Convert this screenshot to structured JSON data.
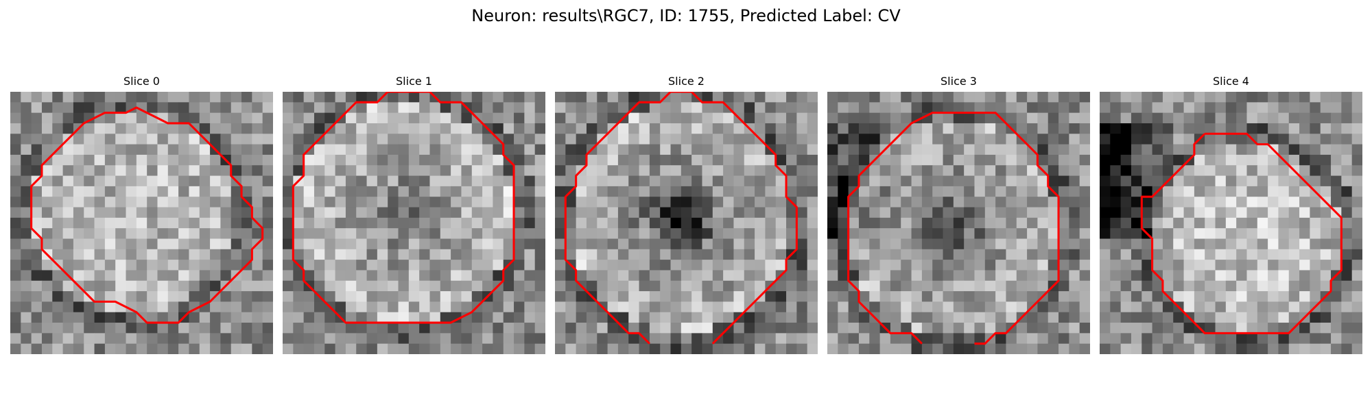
{
  "figure": {
    "title": "Neuron: results\\RGC7, ID: 1755, Predicted Label: CV"
  },
  "panels": [
    {
      "title": "Slice 0",
      "image": "grayscale-microscopy-slice",
      "contour": [
        [
          13,
          2
        ],
        [
          14,
          2.5
        ],
        [
          15,
          3
        ],
        [
          17,
          3
        ],
        [
          18,
          4
        ],
        [
          19,
          5
        ],
        [
          20,
          6
        ],
        [
          21,
          7
        ],
        [
          21,
          8
        ],
        [
          22,
          9
        ],
        [
          22,
          10
        ],
        [
          23,
          11
        ],
        [
          23,
          12
        ],
        [
          24,
          13
        ],
        [
          24,
          14
        ],
        [
          23,
          15
        ],
        [
          23,
          16
        ],
        [
          22,
          17
        ],
        [
          21,
          18
        ],
        [
          20,
          19
        ],
        [
          19,
          20
        ],
        [
          17,
          21
        ],
        [
          16,
          22
        ],
        [
          15,
          22
        ],
        [
          13,
          22
        ],
        [
          12,
          21
        ],
        [
          10,
          20
        ],
        [
          8,
          20
        ],
        [
          7,
          19
        ],
        [
          6,
          18
        ],
        [
          5,
          17
        ],
        [
          4,
          16
        ],
        [
          3,
          15
        ],
        [
          3,
          14
        ],
        [
          2,
          13
        ],
        [
          2,
          12
        ],
        [
          2,
          11
        ],
        [
          2,
          10
        ],
        [
          2,
          9
        ],
        [
          3,
          8
        ],
        [
          3,
          7
        ],
        [
          4,
          6
        ],
        [
          5,
          5
        ],
        [
          6,
          4
        ],
        [
          7,
          3
        ],
        [
          9,
          2
        ],
        [
          11,
          2
        ],
        [
          12,
          1.5
        ]
      ]
    },
    {
      "title": "Slice 1",
      "image": "grayscale-microscopy-slice",
      "contour": [
        [
          12,
          0
        ],
        [
          14,
          0
        ],
        [
          15,
          1
        ],
        [
          17,
          1
        ],
        [
          18,
          2
        ],
        [
          19,
          3
        ],
        [
          20,
          4
        ],
        [
          21,
          5
        ],
        [
          21,
          6
        ],
        [
          22,
          7
        ],
        [
          22,
          8
        ],
        [
          22,
          9
        ],
        [
          22,
          10
        ],
        [
          22,
          11
        ],
        [
          22,
          12
        ],
        [
          22,
          13
        ],
        [
          22,
          14
        ],
        [
          22,
          15
        ],
        [
          22,
          16
        ],
        [
          21,
          17
        ],
        [
          21,
          18
        ],
        [
          20,
          19
        ],
        [
          19,
          20
        ],
        [
          18,
          21
        ],
        [
          16,
          22
        ],
        [
          14,
          22
        ],
        [
          12,
          22
        ],
        [
          10,
          22
        ],
        [
          8,
          22
        ],
        [
          6,
          22
        ],
        [
          5,
          21
        ],
        [
          4,
          20
        ],
        [
          3,
          19
        ],
        [
          2,
          18
        ],
        [
          2,
          17
        ],
        [
          1,
          16
        ],
        [
          1,
          15
        ],
        [
          1,
          14
        ],
        [
          1,
          13
        ],
        [
          1,
          12
        ],
        [
          1,
          11
        ],
        [
          1,
          10
        ],
        [
          1,
          9
        ],
        [
          2,
          8
        ],
        [
          2,
          7
        ],
        [
          2,
          6
        ],
        [
          3,
          5
        ],
        [
          4,
          4
        ],
        [
          5,
          3
        ],
        [
          6,
          2
        ],
        [
          7,
          1
        ],
        [
          9,
          1
        ],
        [
          10,
          0
        ]
      ]
    },
    {
      "title": "Slice 2",
      "image": "grayscale-microscopy-slice",
      "contour": [
        [
          15,
          24
        ],
        [
          16,
          23
        ],
        [
          17,
          22
        ],
        [
          18,
          21
        ],
        [
          19,
          20
        ],
        [
          20,
          19
        ],
        [
          21,
          18
        ],
        [
          22,
          17
        ],
        [
          22,
          16
        ],
        [
          23,
          15
        ],
        [
          23,
          14
        ],
        [
          23,
          13
        ],
        [
          23,
          12
        ],
        [
          23,
          11
        ],
        [
          22,
          10
        ],
        [
          22,
          9
        ],
        [
          22,
          8
        ],
        [
          21,
          7
        ],
        [
          21,
          6
        ],
        [
          20,
          5
        ],
        [
          19,
          4
        ],
        [
          18,
          3
        ],
        [
          17,
          2
        ],
        [
          16,
          1
        ],
        [
          14,
          1
        ],
        [
          13,
          0
        ],
        [
          11,
          0
        ],
        [
          10,
          1
        ],
        [
          8,
          1
        ],
        [
          7,
          2
        ],
        [
          6,
          3
        ],
        [
          5,
          4
        ],
        [
          4,
          5
        ],
        [
          3,
          6
        ],
        [
          3,
          7
        ],
        [
          2,
          8
        ],
        [
          2,
          9
        ],
        [
          1,
          10
        ],
        [
          1,
          11
        ],
        [
          1,
          12
        ],
        [
          1,
          13
        ],
        [
          1,
          14
        ],
        [
          1,
          15
        ],
        [
          1,
          16
        ],
        [
          2,
          17
        ],
        [
          2,
          18
        ],
        [
          3,
          19
        ],
        [
          4,
          20
        ],
        [
          5,
          21
        ],
        [
          6,
          22
        ],
        [
          7,
          23
        ],
        [
          8,
          23
        ],
        [
          9,
          24
        ]
      ]
    },
    {
      "title": "Slice 3",
      "image": "grayscale-microscopy-slice",
      "contour": [
        [
          9,
          24
        ],
        [
          8,
          23
        ],
        [
          6,
          23
        ],
        [
          5,
          22
        ],
        [
          4,
          21
        ],
        [
          3,
          20
        ],
        [
          3,
          19
        ],
        [
          2,
          18
        ],
        [
          2,
          17
        ],
        [
          2,
          16
        ],
        [
          2,
          15
        ],
        [
          2,
          14
        ],
        [
          2,
          13
        ],
        [
          2,
          12
        ],
        [
          2,
          11
        ],
        [
          2,
          10
        ],
        [
          3,
          9
        ],
        [
          3,
          8
        ],
        [
          4,
          7
        ],
        [
          5,
          6
        ],
        [
          6,
          5
        ],
        [
          7,
          4
        ],
        [
          8,
          3
        ],
        [
          10,
          2
        ],
        [
          12,
          2
        ],
        [
          14,
          2
        ],
        [
          16,
          2
        ],
        [
          17,
          3
        ],
        [
          18,
          4
        ],
        [
          19,
          5
        ],
        [
          20,
          6
        ],
        [
          20,
          7
        ],
        [
          21,
          8
        ],
        [
          21,
          9
        ],
        [
          22,
          10
        ],
        [
          22,
          11
        ],
        [
          22,
          12
        ],
        [
          22,
          13
        ],
        [
          22,
          14
        ],
        [
          22,
          15
        ],
        [
          22,
          16
        ],
        [
          22,
          17
        ],
        [
          22,
          18
        ],
        [
          21,
          19
        ],
        [
          20,
          20
        ],
        [
          19,
          21
        ],
        [
          18,
          22
        ],
        [
          17,
          23
        ],
        [
          16,
          23
        ],
        [
          15,
          24
        ],
        [
          14,
          24
        ]
      ]
    },
    {
      "title": "Slice 4",
      "image": "grayscale-microscopy-slice",
      "contour": [
        [
          10,
          4
        ],
        [
          12,
          4
        ],
        [
          14,
          4
        ],
        [
          15,
          5
        ],
        [
          16,
          5
        ],
        [
          17,
          6
        ],
        [
          18,
          7
        ],
        [
          19,
          8
        ],
        [
          20,
          9
        ],
        [
          21,
          10
        ],
        [
          22,
          11
        ],
        [
          23,
          12
        ],
        [
          23,
          13
        ],
        [
          23,
          14
        ],
        [
          23,
          15
        ],
        [
          23,
          16
        ],
        [
          23,
          17
        ],
        [
          22,
          18
        ],
        [
          22,
          19
        ],
        [
          21,
          20
        ],
        [
          20,
          21
        ],
        [
          19,
          22
        ],
        [
          18,
          23
        ],
        [
          16,
          23
        ],
        [
          14,
          23
        ],
        [
          12,
          23
        ],
        [
          10,
          23
        ],
        [
          9,
          22
        ],
        [
          8,
          21
        ],
        [
          7,
          20
        ],
        [
          6,
          19
        ],
        [
          6,
          18
        ],
        [
          5,
          17
        ],
        [
          5,
          16
        ],
        [
          5,
          15
        ],
        [
          5,
          14
        ],
        [
          4,
          13
        ],
        [
          4,
          12
        ],
        [
          4,
          11
        ],
        [
          4,
          10
        ],
        [
          5,
          10
        ],
        [
          6,
          9
        ],
        [
          7,
          8
        ],
        [
          8,
          7
        ],
        [
          9,
          6
        ],
        [
          9,
          5
        ]
      ]
    }
  ],
  "colors": {
    "contour": "#ff0000"
  }
}
